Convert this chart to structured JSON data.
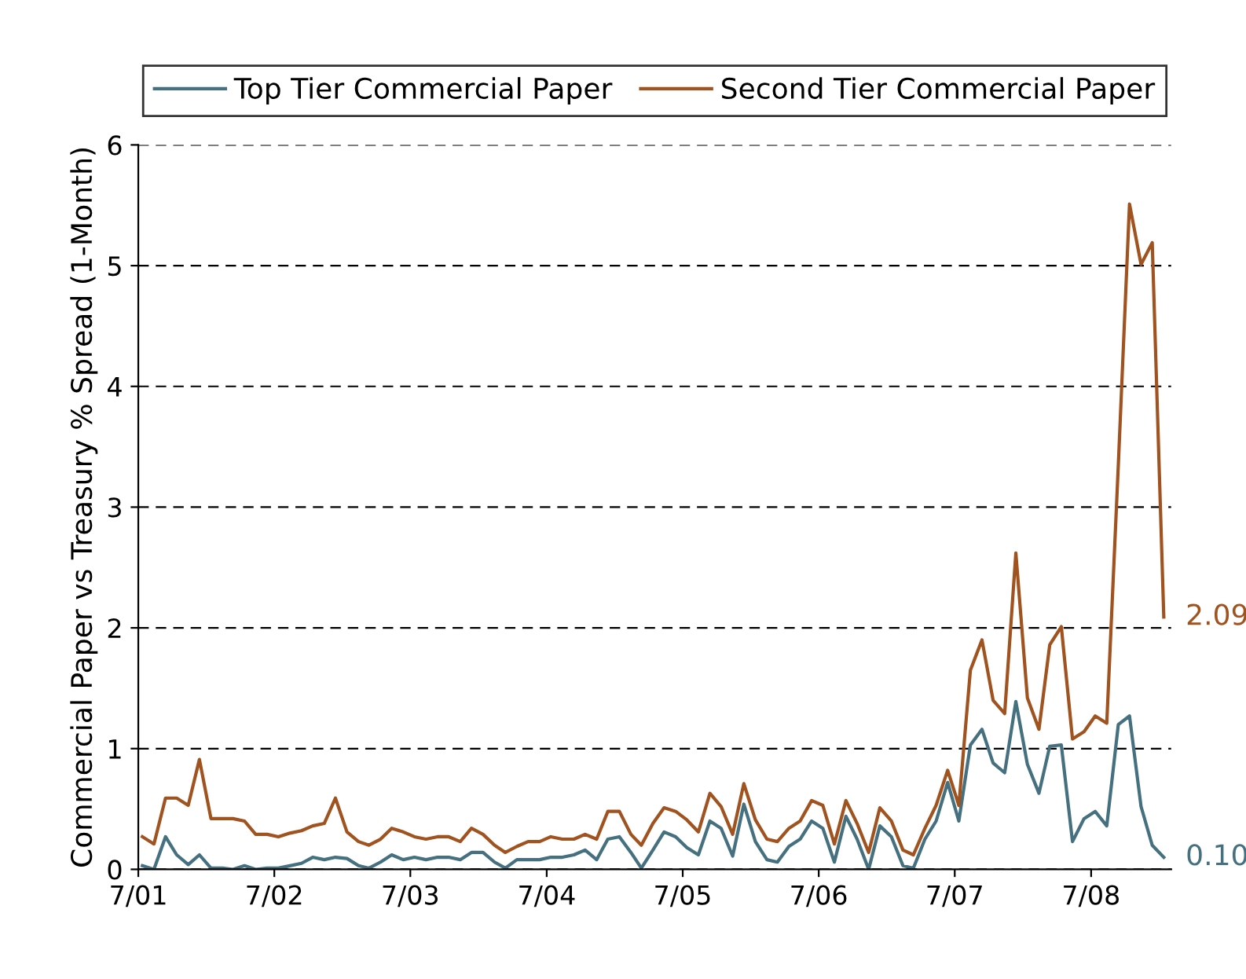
{
  "chart_data": {
    "type": "line",
    "ylabel": "Commercial Paper vs Treasury % Spread (1-Month)",
    "x": [
      "2001-07-12",
      "2001-08-12",
      "2001-09-12",
      "2001-10-12",
      "2001-11-12",
      "2001-12-12",
      "2002-01-12",
      "2002-02-12",
      "2002-03-12",
      "2002-04-12",
      "2002-05-12",
      "2002-06-12",
      "2002-07-12",
      "2002-08-12",
      "2002-09-12",
      "2002-10-12",
      "2002-11-12",
      "2002-12-12",
      "2003-01-12",
      "2003-02-12",
      "2003-03-12",
      "2003-04-12",
      "2003-05-12",
      "2003-06-12",
      "2003-07-12",
      "2003-08-12",
      "2003-09-12",
      "2003-10-12",
      "2003-11-12",
      "2003-12-12",
      "2004-01-12",
      "2004-02-12",
      "2004-03-12",
      "2004-04-12",
      "2004-05-12",
      "2004-06-12",
      "2004-07-12",
      "2004-08-12",
      "2004-09-12",
      "2004-10-12",
      "2004-11-12",
      "2004-12-12",
      "2005-01-12",
      "2005-02-12",
      "2005-03-12",
      "2005-04-12",
      "2005-05-12",
      "2005-06-12",
      "2005-07-12",
      "2005-08-12",
      "2005-09-12",
      "2005-10-12",
      "2005-11-12",
      "2005-12-12",
      "2006-01-12",
      "2006-02-12",
      "2006-03-12",
      "2006-04-12",
      "2006-05-12",
      "2006-06-12",
      "2006-07-12",
      "2006-08-12",
      "2006-09-12",
      "2006-10-12",
      "2006-11-12",
      "2006-12-12",
      "2007-01-12",
      "2007-02-12",
      "2007-03-12",
      "2007-04-12",
      "2007-05-12",
      "2007-06-12",
      "2007-07-12",
      "2007-08-12",
      "2007-09-12",
      "2007-10-12",
      "2007-11-12",
      "2007-12-12",
      "2008-01-12",
      "2008-02-12",
      "2008-03-12",
      "2008-04-12",
      "2008-05-12",
      "2008-06-12",
      "2008-07-12",
      "2008-08-12",
      "2008-09-12",
      "2008-10-12",
      "2008-11-12",
      "2008-12-12",
      "2009-01-12"
    ],
    "series": [
      {
        "name": "Top Tier Commercial Paper",
        "color": "#44707f",
        "values": [
          0.03,
          0.0,
          0.27,
          0.12,
          0.04,
          0.12,
          0.01,
          0.01,
          0.0,
          0.03,
          0.0,
          0.01,
          0.01,
          0.03,
          0.05,
          0.1,
          0.08,
          0.1,
          0.09,
          0.03,
          0.01,
          0.06,
          0.12,
          0.08,
          0.1,
          0.08,
          0.1,
          0.1,
          0.08,
          0.14,
          0.14,
          0.06,
          0.01,
          0.08,
          0.08,
          0.08,
          0.1,
          0.1,
          0.12,
          0.16,
          0.08,
          0.25,
          0.27,
          0.14,
          0.01,
          0.16,
          0.31,
          0.27,
          0.18,
          0.12,
          0.4,
          0.34,
          0.11,
          0.54,
          0.23,
          0.08,
          0.06,
          0.19,
          0.25,
          0.4,
          0.34,
          0.06,
          0.44,
          0.25,
          0.0,
          0.36,
          0.27,
          0.03,
          0.01,
          0.25,
          0.4,
          0.72,
          0.4,
          1.03,
          1.16,
          0.88,
          0.8,
          1.39,
          0.87,
          0.63,
          1.02,
          1.03,
          0.23,
          0.42,
          0.48,
          0.36,
          1.2,
          1.27,
          0.52,
          0.2,
          0.1
        ]
      },
      {
        "name": "Second Tier Commercial Paper",
        "color": "#a0521f",
        "values": [
          0.27,
          0.21,
          0.59,
          0.59,
          0.53,
          0.91,
          0.42,
          0.42,
          0.42,
          0.4,
          0.29,
          0.29,
          0.27,
          0.3,
          0.32,
          0.36,
          0.38,
          0.59,
          0.31,
          0.23,
          0.2,
          0.25,
          0.34,
          0.31,
          0.27,
          0.25,
          0.27,
          0.27,
          0.23,
          0.34,
          0.29,
          0.2,
          0.14,
          0.19,
          0.23,
          0.23,
          0.27,
          0.25,
          0.25,
          0.29,
          0.25,
          0.48,
          0.48,
          0.29,
          0.2,
          0.38,
          0.51,
          0.48,
          0.41,
          0.31,
          0.63,
          0.52,
          0.29,
          0.71,
          0.41,
          0.25,
          0.23,
          0.34,
          0.4,
          0.57,
          0.53,
          0.21,
          0.57,
          0.38,
          0.14,
          0.51,
          0.4,
          0.16,
          0.12,
          0.34,
          0.53,
          0.82,
          0.53,
          1.65,
          1.9,
          1.4,
          1.29,
          2.62,
          1.42,
          1.16,
          1.86,
          2.01,
          1.08,
          1.14,
          1.27,
          1.21,
          3.35,
          5.51,
          5.01,
          5.19,
          2.09
        ]
      }
    ],
    "annotations": [
      {
        "text": "0.10",
        "x": "2009-01-12",
        "y": 0.1
      },
      {
        "text": "2.09",
        "x": "2009-01-12",
        "y": 2.09
      }
    ],
    "xlim": [
      "2001-07-01",
      "2009-02-01"
    ],
    "xticks": [
      {
        "value": "2001-07-01",
        "label": "7/01"
      },
      {
        "value": "2002-07-01",
        "label": "7/02"
      },
      {
        "value": "2003-07-01",
        "label": "7/03"
      },
      {
        "value": "2004-07-01",
        "label": "7/04"
      },
      {
        "value": "2005-07-01",
        "label": "7/05"
      },
      {
        "value": "2006-07-01",
        "label": "7/06"
      },
      {
        "value": "2007-07-01",
        "label": "7/07"
      },
      {
        "value": "2008-07-01",
        "label": "7/08"
      }
    ],
    "ylim": [
      0,
      6
    ],
    "yticks": [
      0,
      1,
      2,
      3,
      4,
      5,
      6
    ],
    "grid": "y",
    "legend": "top",
    "marker": "none",
    "line_style": "solid"
  }
}
